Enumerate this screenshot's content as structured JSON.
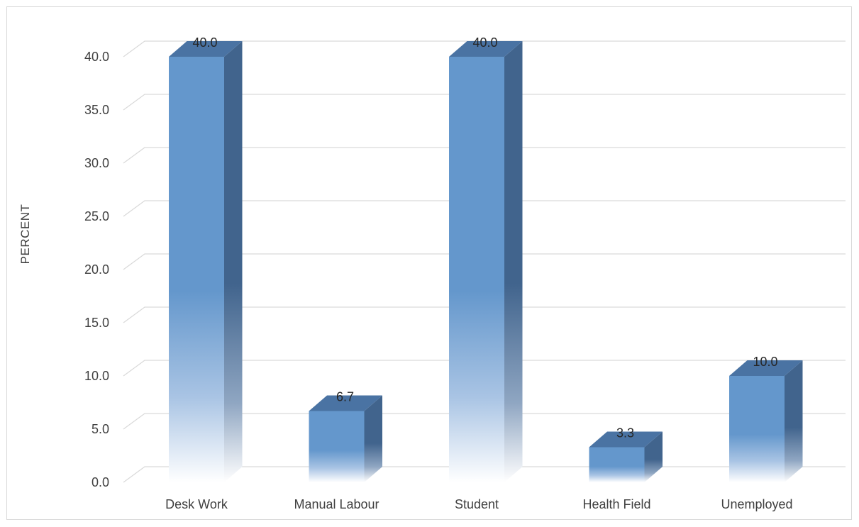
{
  "chart_data": {
    "type": "bar",
    "style": "3d-column",
    "title": "",
    "xlabel": "",
    "ylabel": "PERCENT",
    "categories": [
      "Desk Work",
      "Manual Labour",
      "Student",
      "Health Field",
      "Unemployed"
    ],
    "values": [
      40.0,
      6.7,
      40.0,
      3.3,
      10.0
    ],
    "data_labels": [
      "40.0",
      "6.7",
      "40.0",
      "3.3",
      "10.0"
    ],
    "ylim": [
      0,
      40
    ],
    "yticks": [
      0,
      5,
      10,
      15,
      20,
      25,
      30,
      35,
      40
    ],
    "ytick_labels": [
      "0.0",
      "5.0",
      "10.0",
      "15.0",
      "20.0",
      "25.0",
      "30.0",
      "35.0",
      "40.0"
    ],
    "grid": true,
    "legend": "none",
    "colors": {
      "bar_front": "#6497CC",
      "bar_side": "#41648D",
      "bar_top": "#4A73A3",
      "grid": "#d9d9d9",
      "text": "#404040"
    }
  }
}
